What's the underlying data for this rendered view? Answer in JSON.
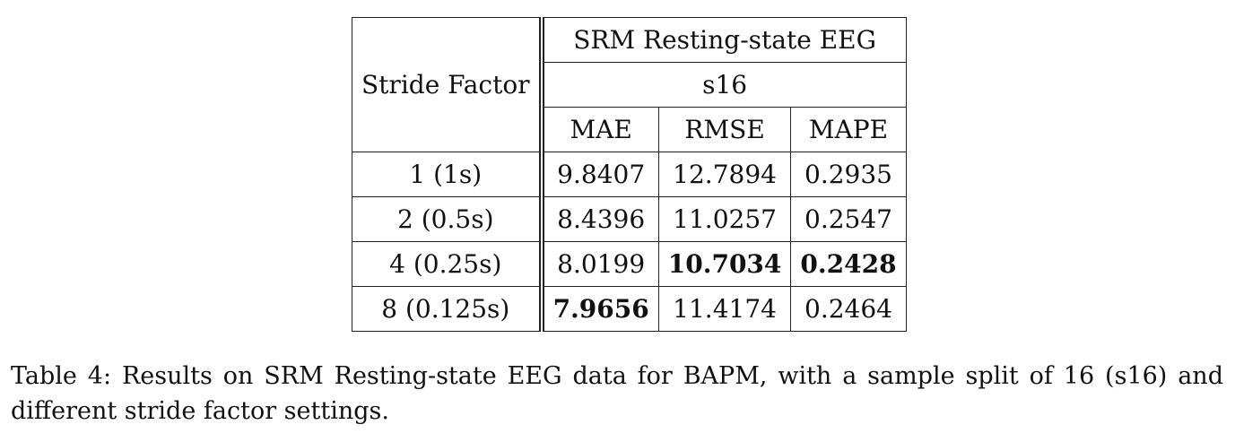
{
  "table": {
    "row_header": "Stride Factor",
    "dataset_header": "SRM Resting-state EEG",
    "split_header": "s16",
    "metrics": [
      "MAE",
      "RMSE",
      "MAPE"
    ],
    "rows": [
      {
        "stride": "1 (1s)",
        "mae": "9.8407",
        "rmse": "12.7894",
        "mape": "0.2935"
      },
      {
        "stride": "2 (0.5s)",
        "mae": "8.4396",
        "rmse": "11.0257",
        "mape": "0.2547"
      },
      {
        "stride": "4 (0.25s)",
        "mae": "8.0199",
        "rmse": "10.7034",
        "mape": "0.2428"
      },
      {
        "stride": "8 (0.125s)",
        "mae": "7.9656",
        "rmse": "11.4174",
        "mape": "0.2464"
      }
    ]
  },
  "caption": "Table 4: Results on SRM Resting-state EEG data for BAPM, with a sample split of 16 (s16) and different stride factor settings."
}
